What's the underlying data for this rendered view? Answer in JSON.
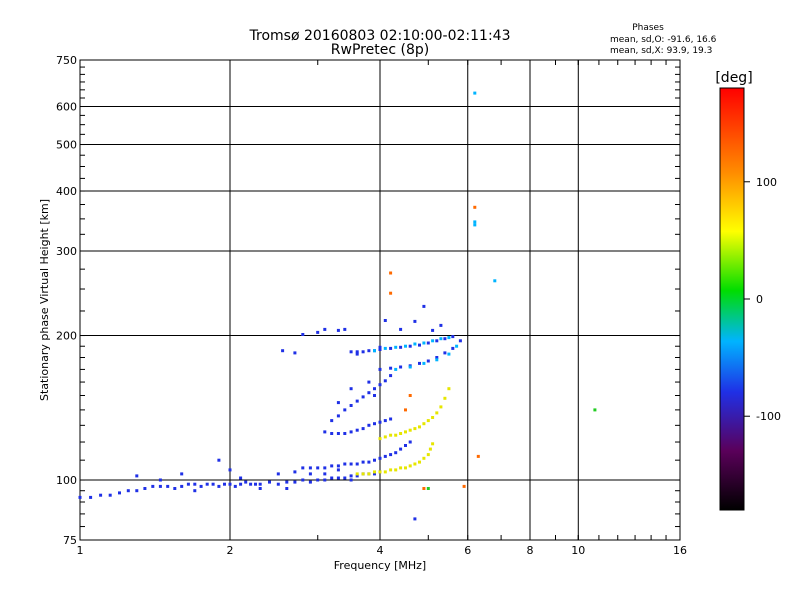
{
  "chart_data": {
    "type": "scatter",
    "title": "Tromsø 20160803 02:10:00-02:11:43",
    "subtitle": "RwPretec (8p)",
    "xlabel": "Frequency [MHz]",
    "ylabel": "Stationary phase Virtual Height [km]",
    "x_scale": "log",
    "y_scale": "log",
    "xlim": [
      1,
      16
    ],
    "ylim": [
      75,
      750
    ],
    "x_ticks": [
      1,
      2,
      4,
      6,
      8,
      10,
      16
    ],
    "y_ticks": [
      75,
      100,
      200,
      300,
      400,
      500,
      600,
      750
    ],
    "grid": true,
    "phases_box": {
      "title": "Phases",
      "line1": "mean, sd,O: -91.6, 16.6",
      "line2": "mean, sd,X:  93.9, 19.3"
    },
    "colorbar": {
      "label": "[deg]",
      "range": [
        -180,
        180
      ],
      "ticks": [
        100,
        0,
        -100
      ],
      "tick_labels": [
        "100",
        "0",
        "-100"
      ]
    },
    "series": [
      {
        "trace": "low-layer",
        "color": "#1f30e6",
        "points": [
          [
            1.0,
            92
          ],
          [
            1.05,
            92
          ],
          [
            1.1,
            93
          ],
          [
            1.15,
            93
          ],
          [
            1.2,
            94
          ],
          [
            1.25,
            95
          ],
          [
            1.3,
            95
          ],
          [
            1.35,
            96
          ],
          [
            1.4,
            97
          ],
          [
            1.45,
            97
          ],
          [
            1.5,
            97
          ],
          [
            1.55,
            96
          ],
          [
            1.6,
            97
          ],
          [
            1.65,
            98
          ],
          [
            1.7,
            98
          ],
          [
            1.75,
            97
          ],
          [
            1.8,
            98
          ],
          [
            1.85,
            98
          ],
          [
            1.9,
            97
          ],
          [
            1.95,
            98
          ],
          [
            2.0,
            98
          ],
          [
            2.05,
            97
          ],
          [
            2.1,
            98
          ],
          [
            2.15,
            99
          ],
          [
            2.2,
            98
          ],
          [
            2.25,
            98
          ],
          [
            2.3,
            98
          ],
          [
            2.4,
            99
          ],
          [
            2.5,
            98
          ],
          [
            2.6,
            99
          ],
          [
            2.7,
            99
          ],
          [
            2.8,
            100
          ],
          [
            2.9,
            99
          ],
          [
            3.0,
            100
          ],
          [
            3.1,
            100
          ],
          [
            3.2,
            101
          ],
          [
            3.3,
            101
          ],
          [
            3.4,
            101
          ],
          [
            3.5,
            102
          ],
          [
            3.6,
            102
          ],
          [
            3.7,
            103
          ],
          [
            3.8,
            103
          ],
          [
            3.9,
            103
          ],
          [
            4.0,
            104
          ],
          [
            1.3,
            102
          ],
          [
            1.45,
            100
          ],
          [
            1.6,
            103
          ],
          [
            1.7,
            95
          ],
          [
            1.9,
            110
          ],
          [
            2.0,
            105
          ],
          [
            2.1,
            101
          ],
          [
            2.3,
            96
          ],
          [
            2.5,
            103
          ],
          [
            2.6,
            96
          ],
          [
            2.7,
            104
          ],
          [
            2.9,
            103
          ],
          [
            3.1,
            103
          ],
          [
            3.3,
            105
          ],
          [
            3.5,
            100
          ]
        ]
      },
      {
        "trace": "lower-stratum",
        "color": "#1f30e6",
        "points": [
          [
            2.8,
            106
          ],
          [
            2.9,
            106
          ],
          [
            3.0,
            106
          ],
          [
            3.1,
            106
          ],
          [
            3.2,
            107
          ],
          [
            3.3,
            107
          ],
          [
            3.4,
            108
          ],
          [
            3.5,
            108
          ],
          [
            3.6,
            108
          ],
          [
            3.7,
            109
          ],
          [
            3.8,
            109
          ],
          [
            3.9,
            110
          ],
          [
            4.0,
            111
          ],
          [
            4.1,
            112
          ],
          [
            4.2,
            113
          ],
          [
            4.3,
            114
          ],
          [
            4.4,
            116
          ],
          [
            4.5,
            118
          ],
          [
            4.6,
            120
          ]
        ]
      },
      {
        "trace": "lower-stratum-yellow",
        "color": "#e6e600",
        "points": [
          [
            3.6,
            103
          ],
          [
            3.7,
            103
          ],
          [
            3.8,
            103
          ],
          [
            3.9,
            104
          ],
          [
            4.0,
            104
          ],
          [
            4.1,
            104
          ],
          [
            4.2,
            105
          ],
          [
            4.3,
            105
          ],
          [
            4.4,
            106
          ],
          [
            4.5,
            106
          ],
          [
            4.6,
            107
          ],
          [
            4.7,
            108
          ],
          [
            4.8,
            109
          ],
          [
            4.9,
            111
          ],
          [
            5.0,
            113
          ],
          [
            5.05,
            116
          ],
          [
            5.1,
            119
          ]
        ]
      },
      {
        "trace": "middle-stratum",
        "color": "#1f30e6",
        "points": [
          [
            3.1,
            126
          ],
          [
            3.2,
            125
          ],
          [
            3.3,
            125
          ],
          [
            3.4,
            125
          ],
          [
            3.5,
            126
          ],
          [
            3.6,
            127
          ],
          [
            3.7,
            128
          ],
          [
            3.8,
            130
          ],
          [
            3.9,
            131
          ],
          [
            4.0,
            132
          ],
          [
            4.1,
            133
          ],
          [
            4.2,
            134
          ],
          [
            3.2,
            133
          ],
          [
            3.3,
            136
          ],
          [
            3.4,
            140
          ],
          [
            3.5,
            143
          ],
          [
            3.6,
            146
          ],
          [
            3.7,
            149
          ],
          [
            3.8,
            152
          ],
          [
            3.9,
            155
          ],
          [
            4.0,
            158
          ],
          [
            4.1,
            161
          ],
          [
            4.2,
            165
          ]
        ]
      },
      {
        "trace": "middle-stratum-yellow",
        "color": "#e6e600",
        "points": [
          [
            4.0,
            122
          ],
          [
            4.1,
            123
          ],
          [
            4.2,
            124
          ],
          [
            4.3,
            124
          ],
          [
            4.4,
            125
          ],
          [
            4.5,
            126
          ],
          [
            4.6,
            127
          ],
          [
            4.7,
            128
          ],
          [
            4.8,
            129
          ],
          [
            4.9,
            131
          ],
          [
            5.0,
            133
          ],
          [
            5.1,
            135
          ],
          [
            5.2,
            138
          ],
          [
            5.3,
            142
          ],
          [
            5.4,
            148
          ],
          [
            5.5,
            155
          ]
        ]
      },
      {
        "trace": "upper-layer",
        "color": "#1f30e6",
        "points": [
          [
            3.5,
            185
          ],
          [
            3.6,
            185
          ],
          [
            3.7,
            185
          ],
          [
            3.8,
            186
          ],
          [
            3.9,
            186
          ],
          [
            4.0,
            187
          ],
          [
            4.2,
            188
          ],
          [
            4.4,
            189
          ],
          [
            4.6,
            190
          ],
          [
            4.8,
            191
          ],
          [
            5.0,
            193
          ],
          [
            5.2,
            195
          ],
          [
            5.4,
            197
          ],
          [
            5.6,
            199
          ],
          [
            4.0,
            170
          ],
          [
            4.2,
            171
          ],
          [
            4.4,
            172
          ],
          [
            4.6,
            173
          ],
          [
            4.8,
            175
          ],
          [
            5.0,
            177
          ],
          [
            5.2,
            180
          ],
          [
            5.4,
            184
          ],
          [
            5.6,
            188
          ],
          [
            5.8,
            195
          ]
        ]
      },
      {
        "trace": "upper-layer-cyan",
        "color": "#00b4ff",
        "points": [
          [
            3.9,
            186
          ],
          [
            4.1,
            188
          ],
          [
            4.3,
            189
          ],
          [
            4.5,
            190
          ],
          [
            4.7,
            192
          ],
          [
            4.9,
            193
          ],
          [
            5.1,
            195
          ],
          [
            5.3,
            197
          ],
          [
            5.5,
            198
          ],
          [
            4.3,
            170
          ],
          [
            4.6,
            172
          ],
          [
            4.9,
            175
          ],
          [
            5.2,
            178
          ],
          [
            5.5,
            183
          ],
          [
            5.7,
            190
          ]
        ]
      },
      {
        "trace": "scattered",
        "color": "#1f30e6",
        "points": [
          [
            2.55,
            186
          ],
          [
            2.7,
            184
          ],
          [
            2.8,
            201
          ],
          [
            3.0,
            203
          ],
          [
            3.1,
            206
          ],
          [
            3.3,
            205
          ],
          [
            3.4,
            206
          ],
          [
            3.6,
            183
          ],
          [
            4.0,
            189
          ],
          [
            4.4,
            206
          ],
          [
            4.7,
            214
          ],
          [
            4.9,
            230
          ],
          [
            5.1,
            205
          ],
          [
            5.3,
            210
          ],
          [
            4.1,
            215
          ],
          [
            3.3,
            145
          ],
          [
            3.5,
            155
          ],
          [
            3.8,
            160
          ],
          [
            3.9,
            150
          ],
          [
            4.7,
            83
          ]
        ]
      },
      {
        "trace": "outliers",
        "color": "#00b4ff",
        "points": [
          [
            6.2,
            640
          ],
          [
            6.2,
            345
          ],
          [
            6.2,
            340
          ],
          [
            6.8,
            260
          ]
        ]
      },
      {
        "trace": "orange-red",
        "color": "#ff6a00",
        "points": [
          [
            6.2,
            370
          ],
          [
            5.9,
            97
          ],
          [
            4.2,
            245
          ],
          [
            4.2,
            270
          ],
          [
            4.6,
            150
          ],
          [
            4.5,
            140
          ],
          [
            4.9,
            96
          ],
          [
            6.3,
            112
          ]
        ]
      },
      {
        "trace": "green",
        "color": "#22cc22",
        "points": [
          [
            10.8,
            140
          ],
          [
            5.0,
            96
          ]
        ]
      }
    ]
  }
}
